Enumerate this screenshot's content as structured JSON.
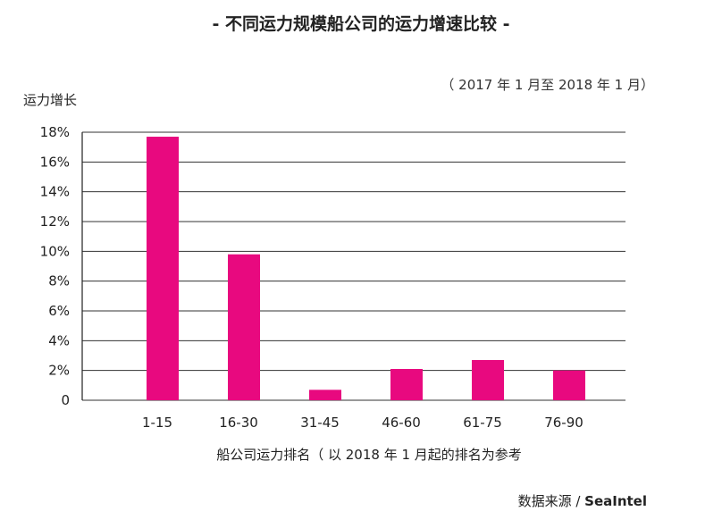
{
  "title": "- 不同运力规模船公司的运力增速比较 -",
  "subtitle": "（ 2017 年 1 月至 2018 年 1 月）",
  "source": {
    "prefix": "数据来源 / ",
    "brand": "SeaIntel"
  },
  "colors": {
    "bar": "#e8097f",
    "grid": "#333333",
    "axis": "#222222"
  },
  "chart_data": {
    "type": "bar",
    "title": "- 不同运力规模船公司的运力增速比较 -",
    "subtitle": "（ 2017 年 1 月至 2018 年 1 月）",
    "xlabel": "船公司运力排名（ 以 2018 年 1 月起的排名为参考",
    "ylabel": "运力增长",
    "categories": [
      "1-15",
      "16-30",
      "31-45",
      "46-60",
      "61-75",
      "76-90"
    ],
    "values": [
      17.7,
      9.8,
      0.7,
      2.1,
      2.7,
      2.0
    ],
    "ylim": [
      0,
      18
    ],
    "yticks": [
      0,
      2,
      4,
      6,
      8,
      10,
      12,
      14,
      16,
      18
    ],
    "ytick_labels": [
      "0",
      "2%",
      "4%",
      "6%",
      "8%",
      "10%",
      "12%",
      "14%",
      "16%",
      "18%"
    ],
    "grid": true,
    "legend": "none"
  }
}
